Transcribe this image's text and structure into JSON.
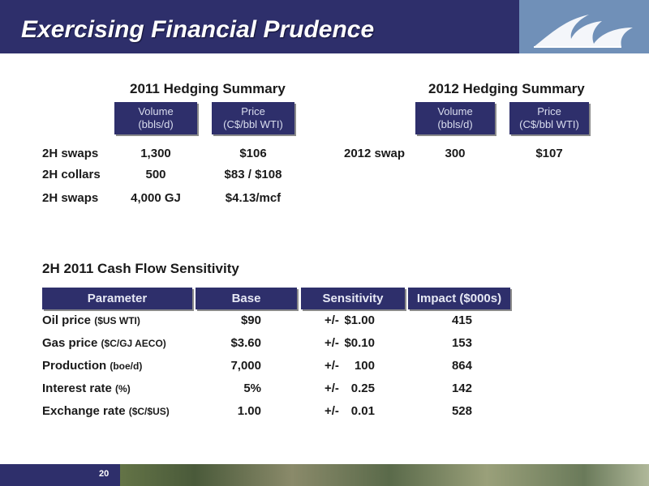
{
  "title": "Exercising Financial Prudence",
  "hedging_2011": {
    "title": "2011 Hedging Summary",
    "volume_header": [
      "Volume",
      "(bbls/d)"
    ],
    "price_header": [
      "Price",
      "(C$/bbl WTI)"
    ],
    "rows": [
      {
        "label": "2H swaps",
        "volume": "1,300",
        "price": "$106"
      },
      {
        "label": "2H collars",
        "volume": "500",
        "price": "$83 / $108"
      },
      {
        "label": "2H swaps",
        "volume": "4,000 GJ",
        "price": "$4.13/mcf"
      }
    ]
  },
  "hedging_2012": {
    "title": "2012 Hedging Summary",
    "volume_header": [
      "Volume",
      "(bbls/d)"
    ],
    "price_header": [
      "Price",
      "(C$/bbl WTI)"
    ],
    "rows": [
      {
        "label": "2012 swap",
        "volume": "300",
        "price": "$107"
      }
    ]
  },
  "sensitivity": {
    "title": "2H 2011 Cash Flow Sensitivity",
    "headers": [
      "Parameter",
      "Base",
      "Sensitivity",
      "Impact ($000s)"
    ],
    "rows": [
      {
        "label": "Oil price",
        "unit": "($US WTI)",
        "base": "$90",
        "sign": "+/-",
        "sens": "$1.00",
        "impact": "415"
      },
      {
        "label": "Gas price",
        "unit": "($C/GJ AECO)",
        "base": "$3.60",
        "sign": "+/-",
        "sens": "$0.10",
        "impact": "153"
      },
      {
        "label": "Production",
        "unit": "(boe/d)",
        "base": "7,000",
        "sign": "+/-",
        "sens": "100",
        "impact": "864"
      },
      {
        "label": "Interest rate",
        "unit": "(%)",
        "base": "5%",
        "sign": "+/-",
        "sens": "0.25",
        "impact": "142"
      },
      {
        "label": "Exchange rate",
        "unit": "($C/$US)",
        "base": "1.00",
        "sign": "+/-",
        "sens": "0.01",
        "impact": "528"
      }
    ]
  },
  "page_number": "20",
  "colors": {
    "navy": "#2e2f6b",
    "logo_blue": "#6f8fb7"
  },
  "icons": {
    "logo": "wave-logo-icon"
  }
}
